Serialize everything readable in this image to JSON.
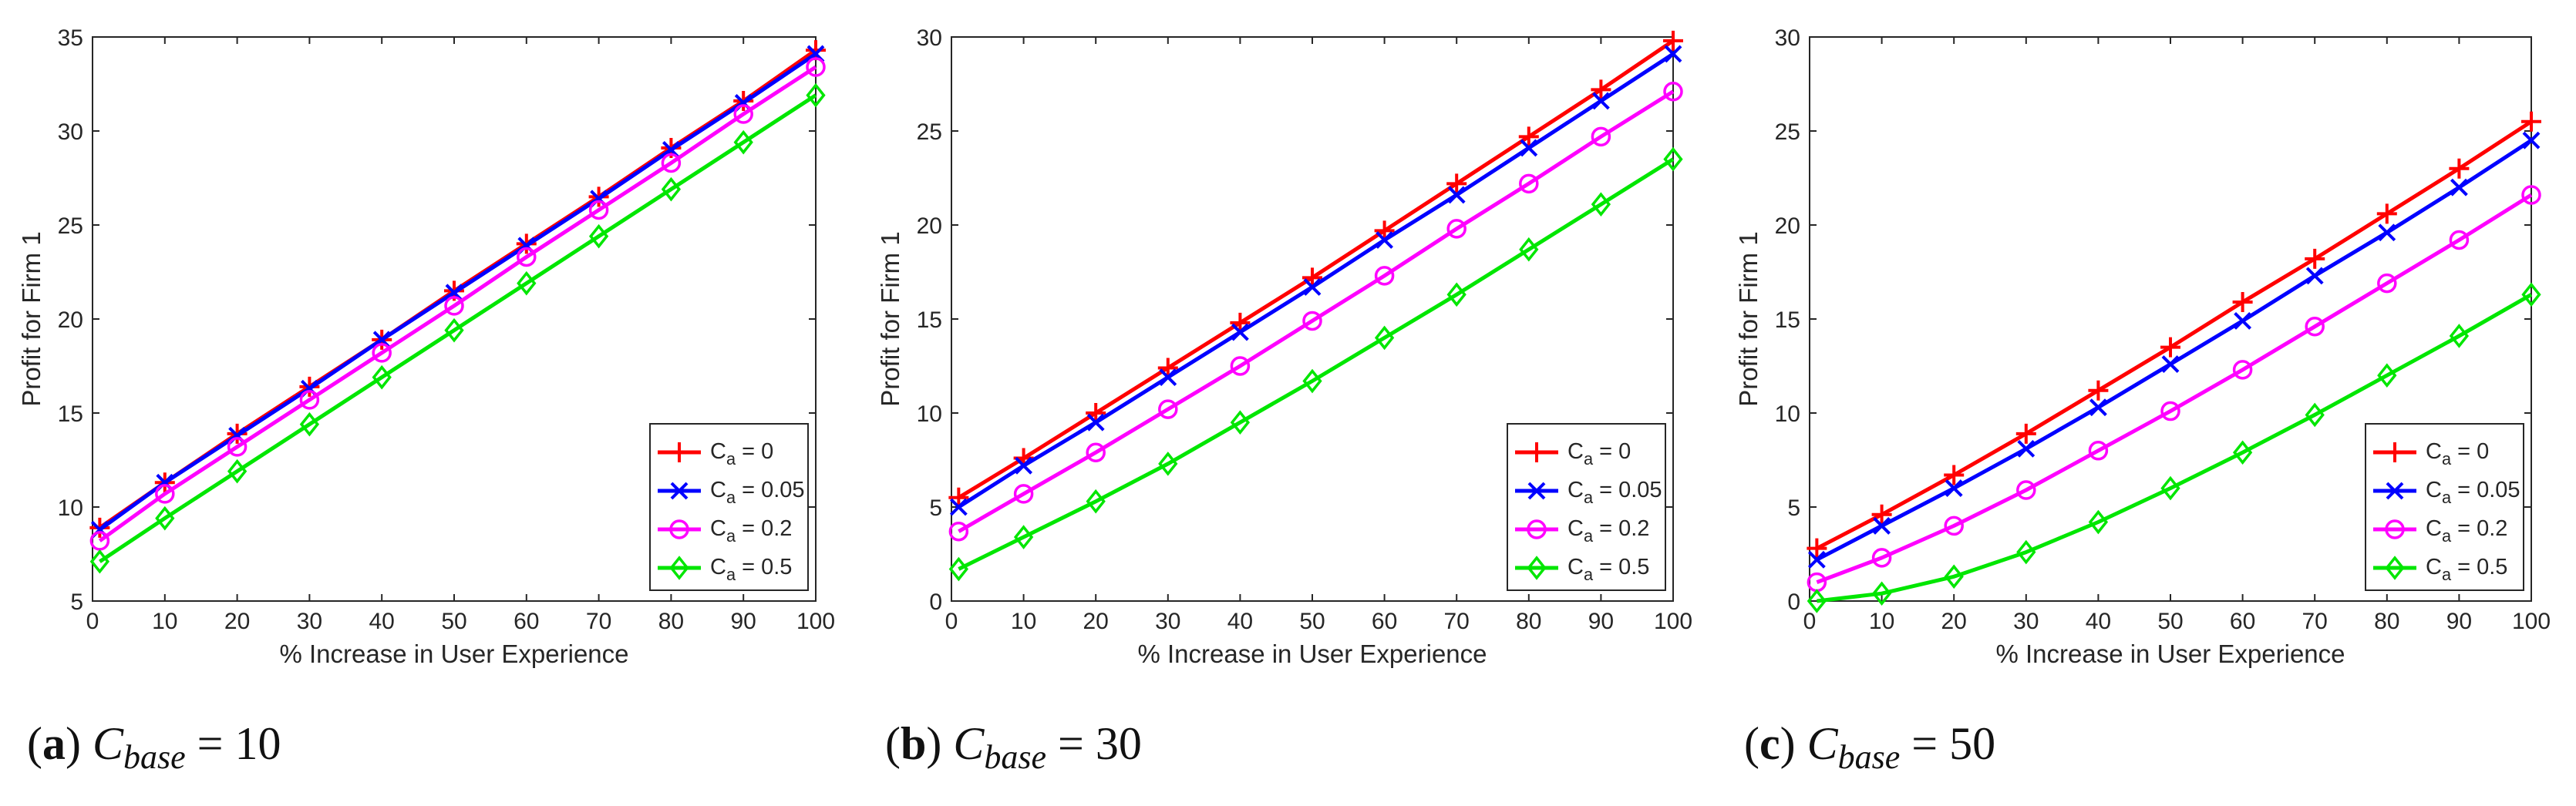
{
  "chart_data": [
    {
      "type": "line",
      "caption": {
        "label": "(a)",
        "base": "C",
        "sub": "base",
        "eq": "= 10"
      },
      "xlabel": "% Increase in User Experience",
      "ylabel": "Profit for Firm 1",
      "xlim": [
        0,
        100
      ],
      "ylim": [
        5,
        35
      ],
      "xticks": [
        0,
        10,
        20,
        30,
        40,
        50,
        60,
        70,
        80,
        90,
        100
      ],
      "yticks": [
        5,
        10,
        15,
        20,
        25,
        30,
        35
      ],
      "x": [
        1,
        10,
        20,
        30,
        40,
        50,
        60,
        70,
        80,
        90,
        100
      ],
      "legend_loc": "lower-right",
      "series": [
        {
          "name": "C_a = 0",
          "legend_main": "C",
          "legend_sub": "a",
          "legend_tail": " = 0",
          "color": "#ff0000",
          "marker": "plus",
          "values": [
            8.9,
            11.3,
            13.9,
            16.4,
            18.9,
            21.5,
            24.0,
            26.5,
            29.1,
            31.6,
            34.3
          ]
        },
        {
          "name": "C_a = 0.05",
          "legend_main": "C",
          "legend_sub": "a",
          "legend_tail": " = 0.05",
          "color": "#0000ff",
          "marker": "x",
          "values": [
            8.8,
            11.3,
            13.8,
            16.3,
            18.9,
            21.4,
            23.9,
            26.4,
            29.0,
            31.5,
            34.1
          ]
        },
        {
          "name": "C_a = 0.2",
          "legend_main": "C",
          "legend_sub": "a",
          "legend_tail": " = 0.2",
          "color": "#ff00ff",
          "marker": "circle",
          "values": [
            8.2,
            10.7,
            13.2,
            15.7,
            18.2,
            20.7,
            23.3,
            25.8,
            28.3,
            30.9,
            33.4
          ]
        },
        {
          "name": "C_a = 0.5",
          "legend_main": "C",
          "legend_sub": "a",
          "legend_tail": " = 0.5",
          "color": "#00e600",
          "marker": "diamond",
          "values": [
            7.1,
            9.4,
            11.9,
            14.4,
            16.9,
            19.4,
            21.9,
            24.4,
            26.9,
            29.4,
            31.9
          ]
        }
      ]
    },
    {
      "type": "line",
      "caption": {
        "label": "(b)",
        "base": "C",
        "sub": "base",
        "eq": "= 30"
      },
      "xlabel": "% Increase in User Experience",
      "ylabel": "Profit for Firm 1",
      "xlim": [
        0,
        100
      ],
      "ylim": [
        0,
        30
      ],
      "xticks": [
        0,
        10,
        20,
        30,
        40,
        50,
        60,
        70,
        80,
        90,
        100
      ],
      "yticks": [
        0,
        5,
        10,
        15,
        20,
        25,
        30
      ],
      "x": [
        1,
        10,
        20,
        30,
        40,
        50,
        60,
        70,
        80,
        90,
        100
      ],
      "legend_loc": "lower-right",
      "series": [
        {
          "name": "C_a = 0",
          "legend_main": "C",
          "legend_sub": "a",
          "legend_tail": " = 0",
          "color": "#ff0000",
          "marker": "plus",
          "values": [
            5.5,
            7.6,
            10.0,
            12.4,
            14.8,
            17.2,
            19.7,
            22.2,
            24.7,
            27.2,
            29.8
          ]
        },
        {
          "name": "C_a = 0.05",
          "legend_main": "C",
          "legend_sub": "a",
          "legend_tail": " = 0.05",
          "color": "#0000ff",
          "marker": "x",
          "values": [
            5.0,
            7.2,
            9.5,
            11.9,
            14.3,
            16.7,
            19.2,
            21.6,
            24.1,
            26.6,
            29.1
          ]
        },
        {
          "name": "C_a = 0.2",
          "legend_main": "C",
          "legend_sub": "a",
          "legend_tail": " = 0.2",
          "color": "#ff00ff",
          "marker": "circle",
          "values": [
            3.7,
            5.7,
            7.9,
            10.2,
            12.5,
            14.9,
            17.3,
            19.8,
            22.2,
            24.7,
            27.1
          ]
        },
        {
          "name": "C_a = 0.5",
          "legend_main": "C",
          "legend_sub": "a",
          "legend_tail": " = 0.5",
          "color": "#00e600",
          "marker": "diamond",
          "values": [
            1.7,
            3.4,
            5.3,
            7.3,
            9.5,
            11.7,
            14.0,
            16.3,
            18.7,
            21.1,
            23.5
          ]
        }
      ]
    },
    {
      "type": "line",
      "caption": {
        "label": "(c)",
        "base": "C",
        "sub": "base",
        "eq": "= 50"
      },
      "xlabel": "% Increase in User Experience",
      "ylabel": "Profit for Firm 1",
      "xlim": [
        0,
        100
      ],
      "ylim": [
        0,
        30
      ],
      "xticks": [
        0,
        10,
        20,
        30,
        40,
        50,
        60,
        70,
        80,
        90,
        100
      ],
      "yticks": [
        0,
        5,
        10,
        15,
        20,
        25,
        30
      ],
      "x": [
        1,
        10,
        20,
        30,
        40,
        50,
        60,
        70,
        80,
        90,
        100
      ],
      "legend_loc": "lower-right",
      "series": [
        {
          "name": "C_a = 0",
          "legend_main": "C",
          "legend_sub": "a",
          "legend_tail": " = 0",
          "color": "#ff0000",
          "marker": "plus",
          "values": [
            2.8,
            4.6,
            6.7,
            8.9,
            11.2,
            13.5,
            15.9,
            18.2,
            20.6,
            23.0,
            25.5
          ]
        },
        {
          "name": "C_a = 0.05",
          "legend_main": "C",
          "legend_sub": "a",
          "legend_tail": " = 0.05",
          "color": "#0000ff",
          "marker": "x",
          "values": [
            2.2,
            4.0,
            6.0,
            8.1,
            10.3,
            12.6,
            14.9,
            17.3,
            19.6,
            22.0,
            24.5
          ]
        },
        {
          "name": "C_a = 0.2",
          "legend_main": "C",
          "legend_sub": "a",
          "legend_tail": " = 0.2",
          "color": "#ff00ff",
          "marker": "circle",
          "values": [
            1.0,
            2.3,
            4.0,
            5.9,
            8.0,
            10.1,
            12.3,
            14.6,
            16.9,
            19.2,
            21.6
          ]
        },
        {
          "name": "C_a = 0.5",
          "legend_main": "C",
          "legend_sub": "a",
          "legend_tail": " = 0.5",
          "color": "#00e600",
          "marker": "diamond",
          "values": [
            0.0,
            0.4,
            1.3,
            2.6,
            4.2,
            6.0,
            7.9,
            9.9,
            12.0,
            14.1,
            16.3
          ]
        }
      ]
    }
  ]
}
